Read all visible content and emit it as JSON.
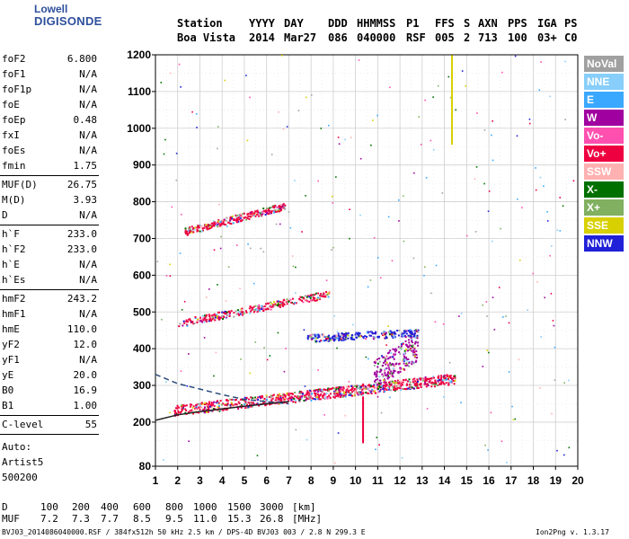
{
  "logo": {
    "line1": "Lowell",
    "line2": "DIGISONDE"
  },
  "header": {
    "labels": [
      "Station",
      "YYYY",
      "DAY",
      "DDD",
      "HHMMSS",
      "P1",
      "FFS",
      "S",
      "AXN",
      "PPS",
      "IGA",
      "PS"
    ],
    "values": [
      "Boa Vista",
      "2014",
      "Mar27",
      "086",
      "040000",
      "RSF",
      "005",
      "2",
      "713",
      "100",
      "03+",
      "C0"
    ]
  },
  "params_group1": [
    {
      "name": "foF2",
      "value": "6.800"
    },
    {
      "name": "foF1",
      "value": "N/A"
    },
    {
      "name": "foF1p",
      "value": "N/A"
    },
    {
      "name": "foE",
      "value": "N/A"
    },
    {
      "name": "foEp",
      "value": "0.48"
    },
    {
      "name": "fxI",
      "value": "N/A"
    },
    {
      "name": "foEs",
      "value": "N/A"
    },
    {
      "name": "fmin",
      "value": "1.75"
    }
  ],
  "params_group2": [
    {
      "name": "MUF(D)",
      "value": "26.75"
    },
    {
      "name": "M(D)",
      "value": "3.93"
    },
    {
      "name": "D",
      "value": "N/A"
    }
  ],
  "params_group3": [
    {
      "name": "h`F",
      "value": "233.0"
    },
    {
      "name": "h`F2",
      "value": "233.0"
    },
    {
      "name": "h`E",
      "value": "N/A"
    },
    {
      "name": "h`Es",
      "value": "N/A"
    }
  ],
  "params_group4": [
    {
      "name": "hmF2",
      "value": "243.2"
    },
    {
      "name": "hmF1",
      "value": "N/A"
    },
    {
      "name": "hmE",
      "value": "110.0"
    },
    {
      "name": "yF2",
      "value": "12.0"
    },
    {
      "name": "yF1",
      "value": "N/A"
    },
    {
      "name": "yE",
      "value": "20.0"
    },
    {
      "name": "B0",
      "value": "16.9"
    },
    {
      "name": "B1",
      "value": "1.00"
    }
  ],
  "c_level": {
    "name": "C-level",
    "value": "55"
  },
  "auto": {
    "line1": "Auto:",
    "line2": "Artist5",
    "line3": "500200"
  },
  "legend": [
    {
      "label": "NoVal",
      "color": "#a0a0a0"
    },
    {
      "label": "NNE",
      "color": "#87cefa"
    },
    {
      "label": "E",
      "color": "#3aa8ff"
    },
    {
      "label": "W",
      "color": "#a000a0"
    },
    {
      "label": "Vo-",
      "color": "#ff50b0"
    },
    {
      "label": "Vo+",
      "color": "#ee0040"
    },
    {
      "label": "SSW",
      "color": "#ffb0b0"
    },
    {
      "label": "X-",
      "color": "#007000"
    },
    {
      "label": "X+",
      "color": "#80b060"
    },
    {
      "label": "SSE",
      "color": "#d8d000"
    },
    {
      "label": "NNW",
      "color": "#2020d8"
    }
  ],
  "mufd_table": {
    "d_label": "D",
    "d_values": [
      "100",
      "200",
      "400",
      "600",
      "800",
      "1000",
      "1500",
      "3000"
    ],
    "d_unit": "[km]",
    "muf_label": "MUF",
    "muf_values": [
      "7.2",
      "7.3",
      "7.7",
      "8.5",
      "9.5",
      "11.0",
      "15.3",
      "26.8"
    ],
    "muf_unit": "[MHz]"
  },
  "footer": {
    "left": "BVJ03_2014086040000.RSF / 384fx512h 50 kHz 2.5 km / DPS-4D BVJ03 003 / 2.8 N 299.3 E",
    "right": "Ion2Png v. 1.3.17"
  },
  "chart_data": {
    "type": "scatter",
    "xlabel": "",
    "ylabel": "",
    "xlim": [
      1,
      20
    ],
    "ylim": [
      80,
      1200
    ],
    "x_ticks": [
      1,
      2,
      3,
      4,
      5,
      6,
      7,
      8,
      9,
      10,
      11,
      12,
      13,
      14,
      15,
      16,
      17,
      18,
      19,
      20
    ],
    "y_ticks": [
      80,
      200,
      300,
      400,
      500,
      600,
      700,
      800,
      900,
      1000,
      1100,
      1200
    ],
    "grid": true,
    "legend_position": "right",
    "traces": [
      {
        "name": "F trace (O)",
        "color": "#ee0040",
        "x_start": 1.8,
        "x_end": 14.5,
        "y_start": 233,
        "y_end": 320
      },
      {
        "name": "2F echo",
        "color": "#ee0040",
        "x_start": 2.0,
        "x_end": 8.8,
        "y_start": 470,
        "y_end": 550
      },
      {
        "name": "3F echo",
        "color": "#ee0040",
        "x_start": 2.3,
        "x_end": 6.8,
        "y_start": 720,
        "y_end": 790
      },
      {
        "name": "oblique echo",
        "color": "#2020d8",
        "x_start": 7.8,
        "x_end": 12.8,
        "y_start": 430,
        "y_end": 445
      },
      {
        "name": "X trace",
        "color": "#a000a0",
        "x_start": 10.8,
        "x_end": 12.8,
        "y_start": 330,
        "y_end": 410
      }
    ],
    "model_profiles": [
      {
        "name": "black profile",
        "style": "solid",
        "points": [
          [
            1,
            205
          ],
          [
            2,
            220
          ],
          [
            3,
            229
          ],
          [
            4,
            236
          ],
          [
            5,
            243
          ],
          [
            6,
            250
          ],
          [
            7,
            256
          ]
        ]
      },
      {
        "name": "blue dashed profile",
        "style": "dashed",
        "points": [
          [
            1,
            330
          ],
          [
            2,
            305
          ],
          [
            3,
            290
          ],
          [
            4,
            275
          ],
          [
            5,
            262
          ],
          [
            6,
            256
          ],
          [
            7,
            250
          ]
        ]
      }
    ],
    "annotation": {
      "foF2_marker": 10.3,
      "vertical_trace_x": 14.3,
      "vertical_trace_y_range": [
        965,
        1200
      ]
    }
  }
}
